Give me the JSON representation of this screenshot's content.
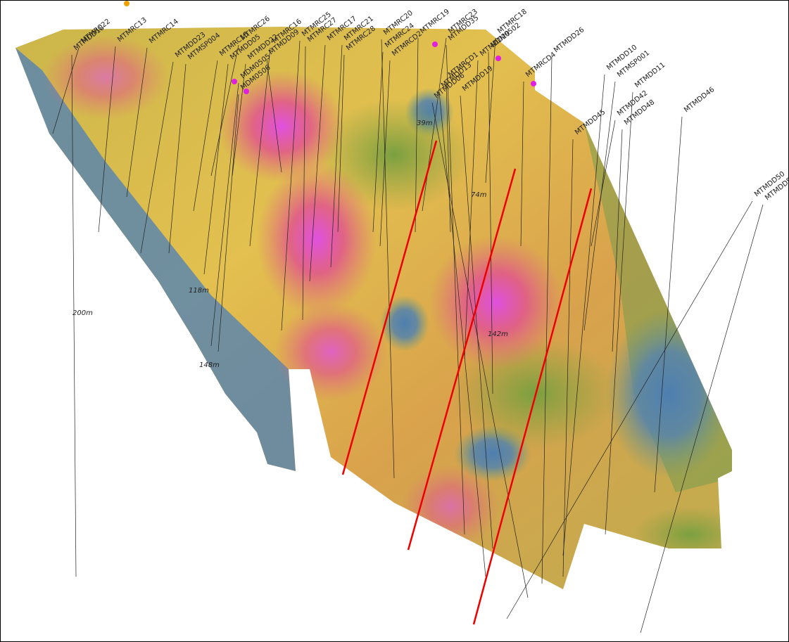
{
  "drillholes": [
    "MTMRC22",
    "MTMDD18",
    "MTMRC13",
    "MTMRC14",
    "MTMDD23",
    "MTMSP004",
    "MTMRC15",
    "MTMDD05",
    "MTMRC26",
    "MTMDD22",
    "MTMRC16",
    "MTMDD09",
    "MTMRC25",
    "MTMRC27",
    "MTMRC17",
    "MTMRC21",
    "MTMRC28",
    "MTMRC20",
    "MTMRC24",
    "MTMRCD2",
    "MTMRC19",
    "MTMRC23",
    "MTMDD35",
    "MTMDD29",
    "MDM0502",
    "MTMRC18",
    "MTMRCD4",
    "MTMDD26",
    "MTMDD10",
    "MTMSP001",
    "MTMDD11",
    "MTMDD42",
    "MTMDD48",
    "MTMDD45",
    "MTMDD46",
    "MTMDD50",
    "MTMDD51",
    "MDM0505",
    "MDM0506",
    "MTMRCD1",
    "MTMDD13",
    "MTMDD19",
    "MTMDD06"
  ],
  "depth_labels": [
    "200m",
    "118m",
    "148m",
    "39m",
    "74m",
    "142m"
  ]
}
